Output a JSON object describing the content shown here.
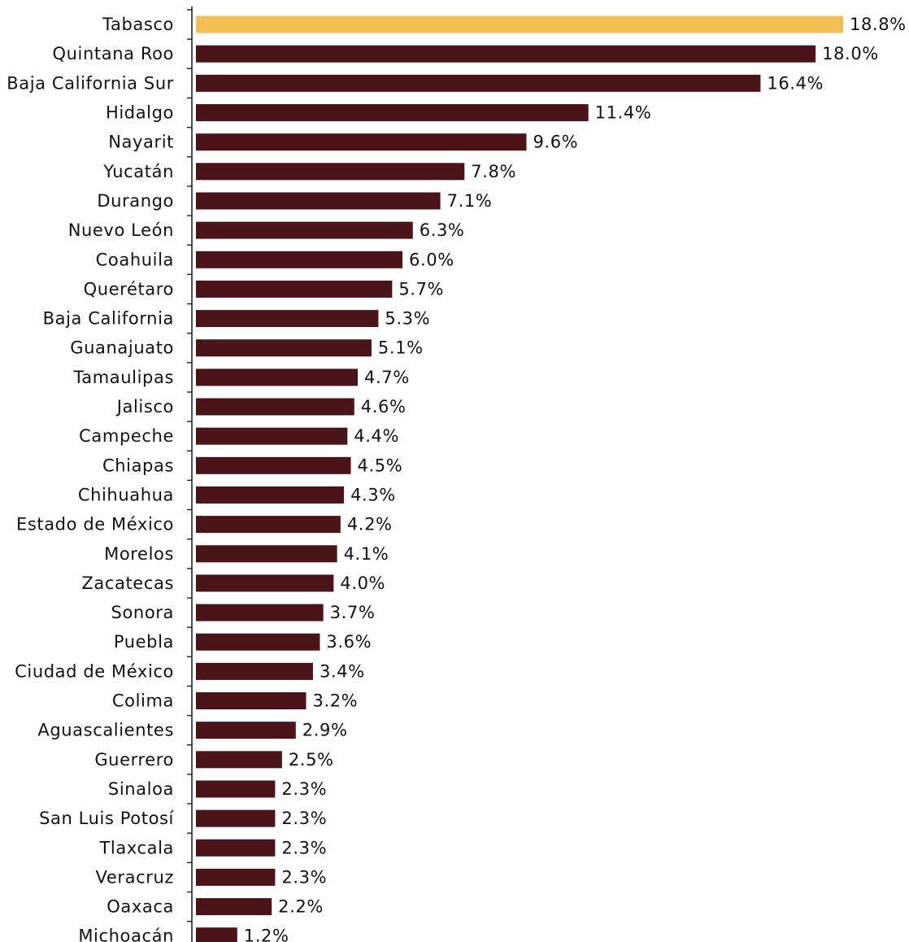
{
  "chart_data": {
    "type": "bar",
    "orientation": "horizontal",
    "categories": [
      "Tabasco",
      "Quintana Roo",
      "Baja California Sur",
      "Hidalgo",
      "Nayarit",
      "Yucatán",
      "Durango",
      "Nuevo León",
      "Coahuila",
      "Querétaro",
      "Baja California",
      "Guanajuato",
      "Tamaulipas",
      "Jalisco",
      "Campeche",
      "Chiapas",
      "Chihuahua",
      "Estado de México",
      "Morelos",
      "Zacatecas",
      "Sonora",
      "Puebla",
      "Ciudad de México",
      "Colima",
      "Aguascalientes",
      "Guerrero",
      "Sinaloa",
      "San Luis Potosí",
      "Tlaxcala",
      "Veracruz",
      "Oaxaca",
      "Michoacán"
    ],
    "values": [
      18.8,
      18.0,
      16.4,
      11.4,
      9.6,
      7.8,
      7.1,
      6.3,
      6.0,
      5.7,
      5.3,
      5.1,
      4.7,
      4.6,
      4.4,
      4.5,
      4.3,
      4.2,
      4.1,
      4.0,
      3.7,
      3.6,
      3.4,
      3.2,
      2.9,
      2.5,
      2.3,
      2.3,
      2.3,
      2.3,
      2.2,
      1.2
    ],
    "value_labels": [
      "18.8%",
      "18.0%",
      "16.4%",
      "11.4%",
      "9.6%",
      "7.8%",
      "7.1%",
      "6.3%",
      "6.0%",
      "5.7%",
      "5.3%",
      "5.1%",
      "4.7%",
      "4.6%",
      "4.4%",
      "4.5%",
      "4.3%",
      "4.2%",
      "4.1%",
      "4.0%",
      "3.7%",
      "3.6%",
      "3.4%",
      "3.2%",
      "2.9%",
      "2.5%",
      "2.3%",
      "2.3%",
      "2.3%",
      "2.3%",
      "2.2%",
      "1.2%"
    ],
    "highlight": [
      "Tabasco"
    ],
    "title": "",
    "xlabel": "",
    "ylabel": "",
    "xlim": [
      0,
      18.8
    ],
    "grid": false,
    "legend": "none",
    "colors": {
      "default": "#4a1418",
      "highlight": "#f3bf55"
    }
  }
}
